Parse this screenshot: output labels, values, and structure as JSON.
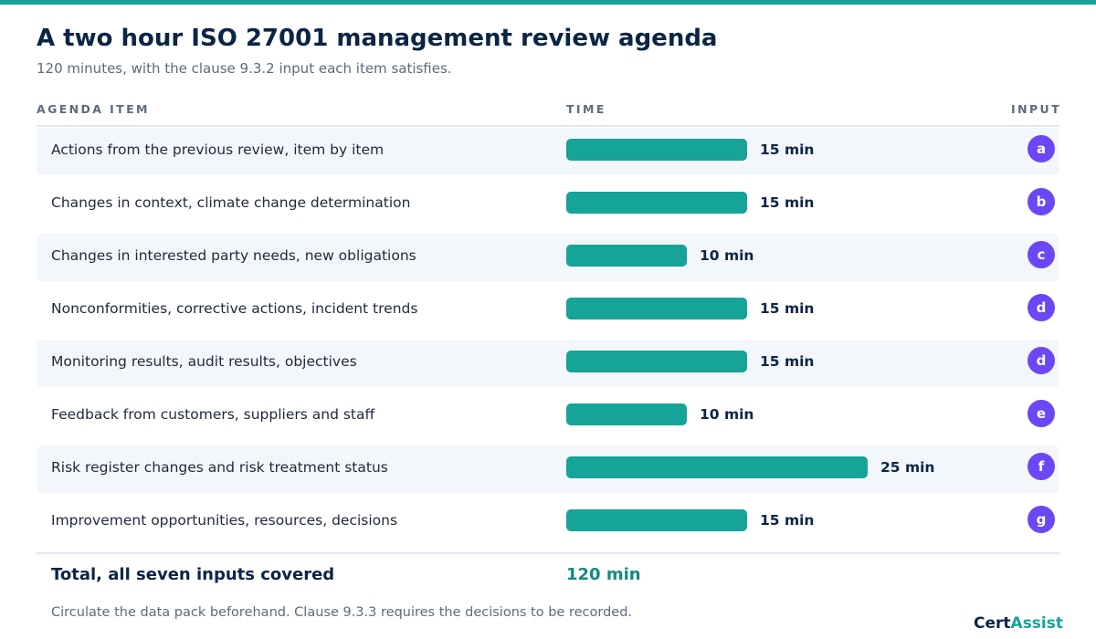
{
  "header": {
    "title": "A two hour ISO 27001 management review agenda",
    "subtitle": "120 minutes, with the clause 9.3.2 input each item satisfies."
  },
  "columns": {
    "item": "AGENDA ITEM",
    "time": "TIME",
    "input": "INPUT"
  },
  "chart_data": {
    "type": "bar",
    "orientation": "horizontal",
    "unit": "min",
    "xlim": [
      0,
      25
    ],
    "categories": [
      "Actions from the previous review, item by item",
      "Changes in context, climate change determination",
      "Changes in interested party needs, new obligations",
      "Nonconformities, corrective actions, incident trends",
      "Monitoring results, audit results, objectives",
      "Feedback from customers, suppliers and staff",
      "Risk register changes and risk treatment status",
      "Improvement opportunities, resources, decisions"
    ],
    "values": [
      15,
      15,
      10,
      15,
      15,
      10,
      25,
      15
    ],
    "value_labels": [
      "15 min",
      "15 min",
      "10 min",
      "15 min",
      "15 min",
      "10 min",
      "25 min",
      "15 min"
    ],
    "inputs": [
      "a",
      "b",
      "c",
      "d",
      "d",
      "e",
      "f",
      "g"
    ],
    "bar_color": "#16a398",
    "badge_color": "#6c47f5",
    "grid": false,
    "legend": "none"
  },
  "totals": {
    "label": "Total, all seven inputs covered",
    "value": "120 min"
  },
  "footnote": "Circulate the data pack beforehand. Clause 9.3.3 requires the decisions to be recorded.",
  "brand": {
    "part1": "Cert",
    "part2": "Assist"
  }
}
